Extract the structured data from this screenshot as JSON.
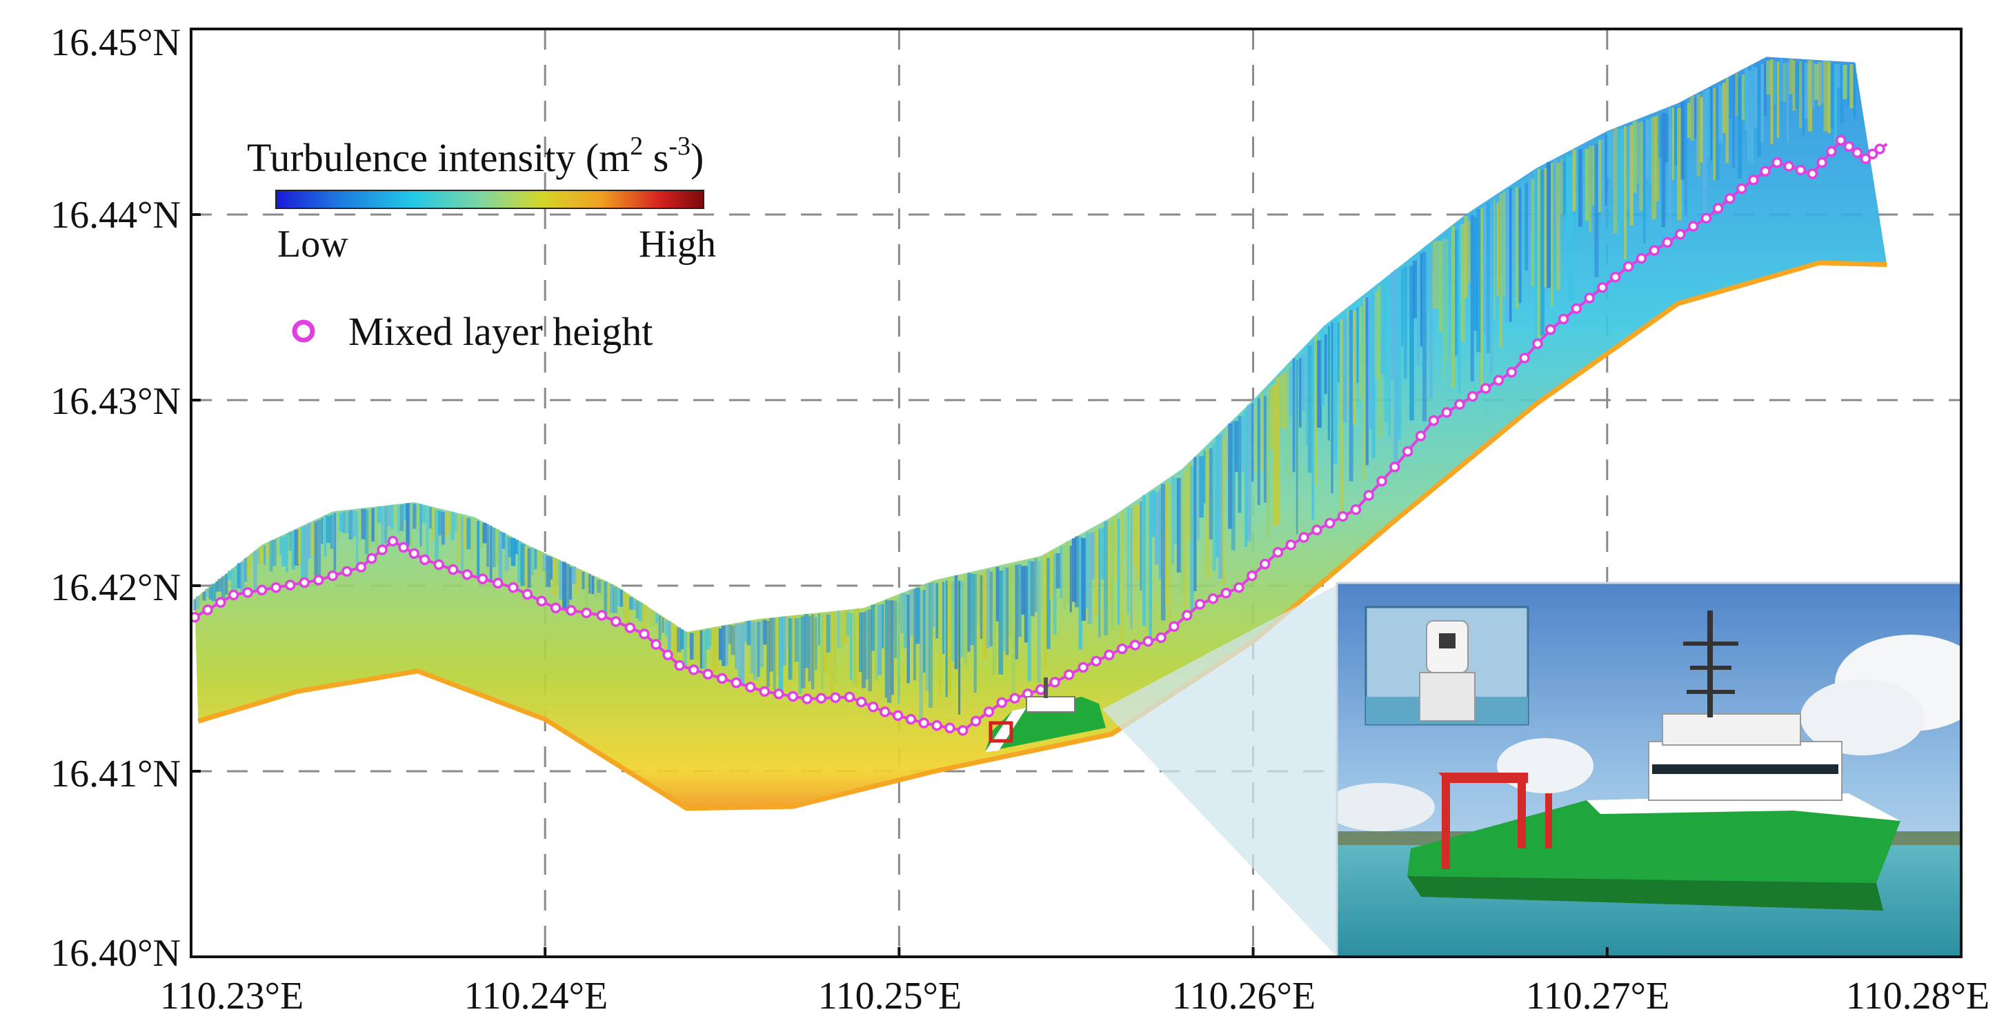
{
  "map": {
    "x_axis_unit": "°E",
    "y_axis_unit": "°N",
    "xlim": [
      110.23,
      110.28
    ],
    "ylim": [
      16.4,
      16.45
    ],
    "x_ticks": [
      "110.23°E",
      "110.24°E",
      "110.25°E",
      "110.26°E",
      "110.27°E",
      "110.28°E"
    ],
    "y_ticks": [
      "16.45°N",
      "16.44°N",
      "16.43°N",
      "16.42°N",
      "16.41°N",
      "16.40°N"
    ],
    "grid": "dashed"
  },
  "colorbar": {
    "title": "Turbulence intensity (m",
    "title_sup1": "2",
    "title_mid": " s",
    "title_sup2": "-3",
    "title_end": ")",
    "low_label": "Low",
    "high_label": "High",
    "colors": [
      "#1a1ad6",
      "#1e7be0",
      "#22c8e6",
      "#7fd6a0",
      "#d4d62a",
      "#f0a020",
      "#d42020",
      "#7a0a0a"
    ]
  },
  "legend": {
    "mixed_layer_label": "Mixed layer height",
    "marker_color": "#e040e0"
  },
  "track": {
    "top_edge": [
      [
        110.2301,
        16.4193
      ],
      [
        110.232,
        16.4222
      ],
      [
        110.234,
        16.424
      ],
      [
        110.2363,
        16.4245
      ],
      [
        110.238,
        16.4237
      ],
      [
        110.2395,
        16.4222
      ],
      [
        110.242,
        16.42
      ],
      [
        110.244,
        16.4175
      ],
      [
        110.246,
        16.4182
      ],
      [
        110.249,
        16.4188
      ],
      [
        110.251,
        16.4203
      ],
      [
        110.254,
        16.4216
      ],
      [
        110.256,
        16.4237
      ],
      [
        110.258,
        16.4263
      ],
      [
        110.26,
        16.43
      ],
      [
        110.262,
        16.434
      ],
      [
        110.264,
        16.437
      ],
      [
        110.266,
        16.44
      ],
      [
        110.268,
        16.4425
      ],
      [
        110.27,
        16.4445
      ],
      [
        110.272,
        16.446
      ],
      [
        110.2745,
        16.4485
      ],
      [
        110.277,
        16.4482
      ]
    ],
    "bottom_edge": [
      [
        110.2302,
        16.4127
      ],
      [
        110.233,
        16.4143
      ],
      [
        110.2364,
        16.4154
      ],
      [
        110.24,
        16.4128
      ],
      [
        110.244,
        16.408
      ],
      [
        110.247,
        16.4081
      ],
      [
        110.251,
        16.41
      ],
      [
        110.256,
        16.412
      ],
      [
        110.26,
        16.417
      ],
      [
        110.264,
        16.4235
      ],
      [
        110.268,
        16.4298
      ],
      [
        110.272,
        16.4352
      ],
      [
        110.276,
        16.4374
      ],
      [
        110.2779,
        16.4373
      ]
    ],
    "mixed_layer_height": [
      [
        110.2301,
        16.4183
      ],
      [
        110.2312,
        16.4195
      ],
      [
        110.2324,
        16.4199
      ],
      [
        110.2336,
        16.4203
      ],
      [
        110.2348,
        16.421
      ],
      [
        110.2357,
        16.4224
      ],
      [
        110.2366,
        16.4214
      ],
      [
        110.2378,
        16.4206
      ],
      [
        110.2391,
        16.4199
      ],
      [
        110.2403,
        16.4188
      ],
      [
        110.2416,
        16.4184
      ],
      [
        110.2428,
        16.4174
      ],
      [
        110.2438,
        16.4157
      ],
      [
        110.245,
        16.415
      ],
      [
        110.2462,
        16.4143
      ],
      [
        110.2474,
        16.4139
      ],
      [
        110.2486,
        16.414
      ],
      [
        110.2496,
        16.4132
      ],
      [
        110.2507,
        16.4126
      ],
      [
        110.2518,
        16.4122
      ],
      [
        110.2529,
        16.4137
      ],
      [
        110.254,
        16.4144
      ],
      [
        110.2552,
        16.4156
      ],
      [
        110.2563,
        16.4166
      ],
      [
        110.2574,
        16.4172
      ],
      [
        110.2585,
        16.419
      ],
      [
        110.2596,
        16.4199
      ],
      [
        110.2607,
        16.4218
      ],
      [
        110.2618,
        16.423
      ],
      [
        110.2629,
        16.4241
      ],
      [
        110.264,
        16.4264
      ],
      [
        110.2651,
        16.4289
      ],
      [
        110.2662,
        16.4302
      ],
      [
        110.2673,
        16.4315
      ],
      [
        110.2684,
        16.4338
      ],
      [
        110.2695,
        16.4355
      ],
      [
        110.2706,
        16.4372
      ],
      [
        110.2717,
        16.4385
      ],
      [
        110.2728,
        16.4398
      ],
      [
        110.2738,
        16.4414
      ],
      [
        110.2748,
        16.4428
      ],
      [
        110.2758,
        16.4422
      ],
      [
        110.2766,
        16.444
      ],
      [
        110.2773,
        16.443
      ],
      [
        110.2779,
        16.4438
      ]
    ]
  }
}
